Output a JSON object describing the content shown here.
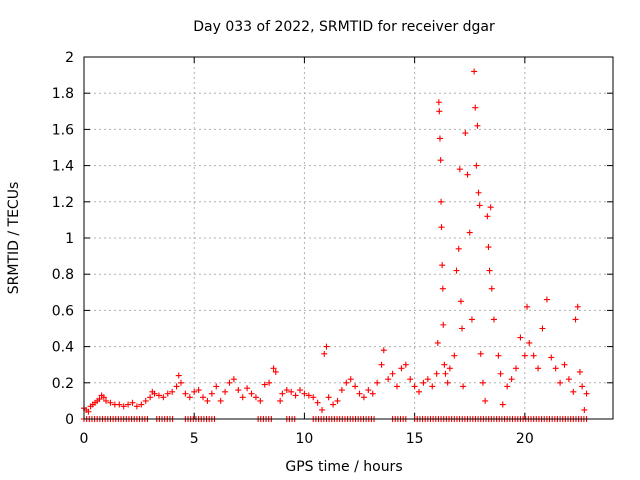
{
  "chart_data": {
    "type": "scatter",
    "title": "Day 033 of 2022, SRMTID for receiver dgar",
    "xlabel": "GPS time / hours",
    "ylabel": "SRMTID / TECUs",
    "xlim": [
      0,
      24
    ],
    "ylim": [
      0,
      2
    ],
    "xticks": [
      0,
      5,
      10,
      15,
      20
    ],
    "xtick_labels": [
      "0",
      "5",
      "10",
      "15",
      "20"
    ],
    "yticks": [
      0,
      0.2,
      0.4,
      0.6,
      0.8,
      1,
      1.2,
      1.4,
      1.6,
      1.8,
      2
    ],
    "ytick_labels": [
      "0",
      "0.2",
      "0.4",
      "0.6",
      "0.8",
      "1",
      "1.2",
      "1.4",
      "1.6",
      "1.8",
      "2"
    ],
    "grid": true,
    "marker": "+",
    "color": "#ff0000",
    "series": [
      {
        "name": "SRMTID",
        "points": [
          [
            0.0,
            0.06
          ],
          [
            0.1,
            0.05
          ],
          [
            0.2,
            0.04
          ],
          [
            0.3,
            0.07
          ],
          [
            0.4,
            0.08
          ],
          [
            0.5,
            0.09
          ],
          [
            0.6,
            0.1
          ],
          [
            0.7,
            0.11
          ],
          [
            0.8,
            0.13
          ],
          [
            0.9,
            0.12
          ],
          [
            1.0,
            0.1
          ],
          [
            1.2,
            0.09
          ],
          [
            1.4,
            0.08
          ],
          [
            1.6,
            0.08
          ],
          [
            1.8,
            0.07
          ],
          [
            2.0,
            0.08
          ],
          [
            2.2,
            0.09
          ],
          [
            2.4,
            0.07
          ],
          [
            2.6,
            0.08
          ],
          [
            2.8,
            0.1
          ],
          [
            3.0,
            0.12
          ],
          [
            3.1,
            0.15
          ],
          [
            3.2,
            0.14
          ],
          [
            3.4,
            0.13
          ],
          [
            3.6,
            0.12
          ],
          [
            3.8,
            0.14
          ],
          [
            4.0,
            0.15
          ],
          [
            4.2,
            0.18
          ],
          [
            4.3,
            0.24
          ],
          [
            4.4,
            0.2
          ],
          [
            4.6,
            0.14
          ],
          [
            4.8,
            0.12
          ],
          [
            5.0,
            0.15
          ],
          [
            5.2,
            0.16
          ],
          [
            5.4,
            0.12
          ],
          [
            5.6,
            0.1
          ],
          [
            5.8,
            0.14
          ],
          [
            6.0,
            0.18
          ],
          [
            6.2,
            0.1
          ],
          [
            6.4,
            0.15
          ],
          [
            6.6,
            0.2
          ],
          [
            6.8,
            0.22
          ],
          [
            7.0,
            0.16
          ],
          [
            7.2,
            0.12
          ],
          [
            7.4,
            0.17
          ],
          [
            7.6,
            0.14
          ],
          [
            7.8,
            0.12
          ],
          [
            8.0,
            0.1
          ],
          [
            8.2,
            0.19
          ],
          [
            8.4,
            0.2
          ],
          [
            8.6,
            0.28
          ],
          [
            8.7,
            0.26
          ],
          [
            8.9,
            0.1
          ],
          [
            9.0,
            0.14
          ],
          [
            9.2,
            0.16
          ],
          [
            9.4,
            0.15
          ],
          [
            9.6,
            0.13
          ],
          [
            9.8,
            0.16
          ],
          [
            10.0,
            0.14
          ],
          [
            10.2,
            0.13
          ],
          [
            10.4,
            0.12
          ],
          [
            10.6,
            0.09
          ],
          [
            10.8,
            0.05
          ],
          [
            10.9,
            0.36
          ],
          [
            11.0,
            0.4
          ],
          [
            11.1,
            0.12
          ],
          [
            11.3,
            0.08
          ],
          [
            11.5,
            0.1
          ],
          [
            11.7,
            0.16
          ],
          [
            11.9,
            0.2
          ],
          [
            12.1,
            0.22
          ],
          [
            12.3,
            0.18
          ],
          [
            12.5,
            0.14
          ],
          [
            12.7,
            0.12
          ],
          [
            12.9,
            0.16
          ],
          [
            13.1,
            0.14
          ],
          [
            13.3,
            0.2
          ],
          [
            13.5,
            0.3
          ],
          [
            13.6,
            0.38
          ],
          [
            13.8,
            0.22
          ],
          [
            14.0,
            0.25
          ],
          [
            14.2,
            0.18
          ],
          [
            14.4,
            0.28
          ],
          [
            14.6,
            0.3
          ],
          [
            14.8,
            0.22
          ],
          [
            15.0,
            0.18
          ],
          [
            15.2,
            0.15
          ],
          [
            15.4,
            0.2
          ],
          [
            15.6,
            0.22
          ],
          [
            15.8,
            0.18
          ],
          [
            16.0,
            0.25
          ],
          [
            16.05,
            0.42
          ],
          [
            16.1,
            1.75
          ],
          [
            16.12,
            1.7
          ],
          [
            16.15,
            1.55
          ],
          [
            16.18,
            1.43
          ],
          [
            16.2,
            1.2
          ],
          [
            16.22,
            1.06
          ],
          [
            16.25,
            0.85
          ],
          [
            16.28,
            0.72
          ],
          [
            16.3,
            0.52
          ],
          [
            16.35,
            0.3
          ],
          [
            16.4,
            0.25
          ],
          [
            16.5,
            0.2
          ],
          [
            16.6,
            0.28
          ],
          [
            16.8,
            0.35
          ],
          [
            16.9,
            0.82
          ],
          [
            17.0,
            0.94
          ],
          [
            17.05,
            1.38
          ],
          [
            17.1,
            0.65
          ],
          [
            17.15,
            0.5
          ],
          [
            17.2,
            0.18
          ],
          [
            17.3,
            1.58
          ],
          [
            17.4,
            1.35
          ],
          [
            17.5,
            1.03
          ],
          [
            17.6,
            0.55
          ],
          [
            17.7,
            1.92
          ],
          [
            17.75,
            1.72
          ],
          [
            17.8,
            1.4
          ],
          [
            17.85,
            1.62
          ],
          [
            17.9,
            1.25
          ],
          [
            17.95,
            1.18
          ],
          [
            18.0,
            0.36
          ],
          [
            18.1,
            0.2
          ],
          [
            18.2,
            0.1
          ],
          [
            18.3,
            1.12
          ],
          [
            18.35,
            0.95
          ],
          [
            18.4,
            0.82
          ],
          [
            18.45,
            1.17
          ],
          [
            18.5,
            0.72
          ],
          [
            18.6,
            0.55
          ],
          [
            18.8,
            0.35
          ],
          [
            18.9,
            0.25
          ],
          [
            19.0,
            0.08
          ],
          [
            19.2,
            0.18
          ],
          [
            19.4,
            0.22
          ],
          [
            19.6,
            0.28
          ],
          [
            19.8,
            0.45
          ],
          [
            20.0,
            0.35
          ],
          [
            20.1,
            0.62
          ],
          [
            20.2,
            0.42
          ],
          [
            20.4,
            0.35
          ],
          [
            20.6,
            0.28
          ],
          [
            20.8,
            0.5
          ],
          [
            21.0,
            0.66
          ],
          [
            21.2,
            0.34
          ],
          [
            21.4,
            0.28
          ],
          [
            21.6,
            0.2
          ],
          [
            21.8,
            0.3
          ],
          [
            22.0,
            0.22
          ],
          [
            22.2,
            0.15
          ],
          [
            22.3,
            0.55
          ],
          [
            22.4,
            0.62
          ],
          [
            22.5,
            0.26
          ],
          [
            22.6,
            0.18
          ],
          [
            22.7,
            0.05
          ],
          [
            22.8,
            0.14
          ]
        ]
      }
    ],
    "zero_band": {
      "y": 0,
      "x_ranges": [
        [
          0.0,
          2.9
        ],
        [
          3.3,
          4.1
        ],
        [
          4.6,
          6.0
        ],
        [
          7.9,
          8.6
        ],
        [
          9.2,
          9.6
        ],
        [
          10.4,
          13.2
        ],
        [
          14.0,
          14.6
        ],
        [
          15.0,
          22.8
        ]
      ]
    }
  }
}
